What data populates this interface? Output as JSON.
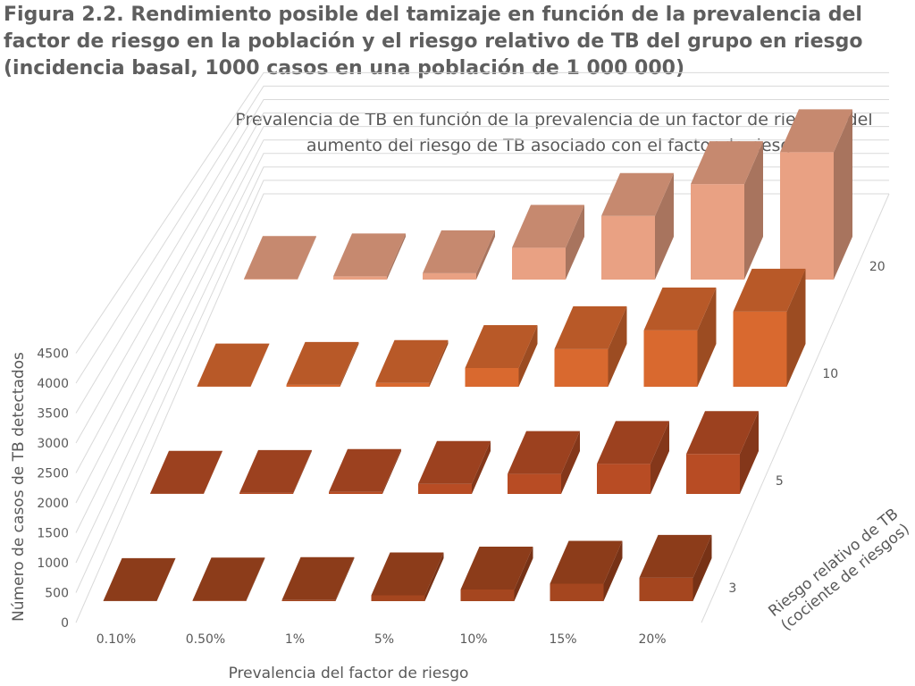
{
  "figure_title": "Figura 2.2. Rendimiento posible del tamizaje en función de la prevalencia del factor de riesgo en la población y el riesgo relativo de TB del grupo en riesgo (incidencia basal, 1000 casos en una población de 1 000 000)",
  "chart_data": {
    "type": "bar",
    "subtype": "3d-column",
    "title": "Prevalencia de TB en función de la prevalencia de un factor de riesgo y del aumento del riesgo de TB asociado con el factor de riesgo",
    "xlabel": "Prevalencia del factor de riesgo",
    "ylabel": "Número de casos de TB detectados",
    "zlabel": "Riesgo relativo de TB (cociente de riesgos)",
    "categories": [
      "0.10%",
      "0.50%",
      "1%",
      "5%",
      "10%",
      "15%",
      "20%"
    ],
    "depth_categories": [
      "3",
      "5",
      "10",
      "20"
    ],
    "y_ticks": [
      "0",
      "500",
      "1000",
      "1500",
      "2000",
      "2500",
      "3000",
      "3500",
      "4000",
      "4500"
    ],
    "ylim": [
      0,
      4500
    ],
    "grid": true,
    "legend": "none",
    "series": [
      {
        "name": "3",
        "values": [
          2,
          10,
          20,
          100,
          200,
          300,
          400
        ],
        "color": "#a5461f"
      },
      {
        "name": "5",
        "values": [
          4,
          20,
          40,
          200,
          400,
          600,
          800
        ],
        "color": "#b84c24"
      },
      {
        "name": "10",
        "values": [
          9,
          45,
          90,
          450,
          900,
          1350,
          1800
        ],
        "color": "#d9692f"
      },
      {
        "name": "20",
        "values": [
          19,
          95,
          190,
          950,
          1900,
          2850,
          3800
        ],
        "color": "#e9a183"
      }
    ]
  }
}
